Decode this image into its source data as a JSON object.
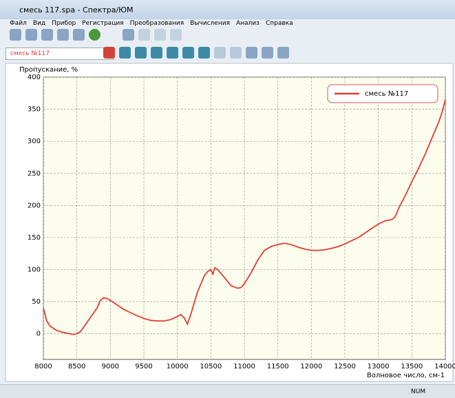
{
  "window": {
    "title": "смесь 117.spa - Спектра/ЮМ",
    "menu": [
      "Файл",
      "Вид",
      "Прибор",
      "Регистрация",
      "Преобразования",
      "Вычисления",
      "Анализ",
      "Справка"
    ],
    "sample_select": "смесь №117",
    "status": "NUM"
  },
  "chart_data": {
    "type": "line",
    "ylabel": "Пропускание, %",
    "xlabel": "Волновое число, см-1",
    "x": [
      8000,
      8050,
      8100,
      8200,
      8300,
      8400,
      8450,
      8500,
      8550,
      8600,
      8700,
      8800,
      8850,
      8900,
      8950,
      9000,
      9100,
      9200,
      9300,
      9400,
      9500,
      9600,
      9700,
      9800,
      9900,
      10000,
      10050,
      10100,
      10150,
      10200,
      10300,
      10400,
      10450,
      10500,
      10530,
      10560,
      10600,
      10700,
      10800,
      10900,
      10950,
      11000,
      11100,
      11200,
      11300,
      11400,
      11500,
      11600,
      11700,
      11800,
      11900,
      12000,
      12100,
      12200,
      12300,
      12400,
      12500,
      12600,
      12700,
      12800,
      12900,
      13000,
      13100,
      13200,
      13250,
      13300,
      13400,
      13500,
      13600,
      13700,
      13800,
      13900,
      13950,
      14000
    ],
    "series": [
      {
        "name": "смесь №117",
        "color": "#e03c31",
        "values": [
          40,
          20,
          12,
          5,
          2,
          0,
          -1,
          0,
          3,
          10,
          25,
          40,
          52,
          56,
          55,
          52,
          45,
          38,
          33,
          28,
          24,
          21,
          20,
          20,
          22,
          27,
          30,
          25,
          15,
          30,
          65,
          90,
          97,
          100,
          93,
          103,
          100,
          88,
          75,
          71,
          72,
          78,
          95,
          115,
          130,
          136,
          139,
          141,
          139,
          135,
          132,
          130,
          130,
          131,
          133,
          136,
          140,
          145,
          150,
          157,
          164,
          171,
          176,
          178,
          182,
          195,
          215,
          237,
          258,
          280,
          305,
          330,
          345,
          365
        ]
      }
    ],
    "xlim": [
      8000,
      14000
    ],
    "xticks": [
      8000,
      8500,
      9000,
      9500,
      10000,
      10500,
      11000,
      11500,
      12000,
      12500,
      13000,
      13500,
      14000
    ],
    "ylim": [
      -40,
      400
    ],
    "yticks": [
      0,
      50,
      100,
      150,
      200,
      250,
      300,
      350,
      400
    ],
    "grid": true,
    "legend": "top-right"
  }
}
